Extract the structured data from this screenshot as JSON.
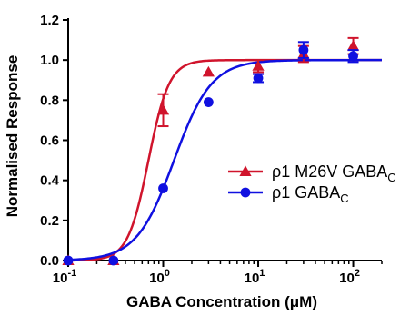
{
  "chart_data": {
    "type": "scatter",
    "title": "",
    "xlabel": "GABA Concentration (μM)",
    "ylabel": "Normalised Response",
    "xscale": "log",
    "xlim": [
      0.1,
      200
    ],
    "ylim": [
      0,
      1.2
    ],
    "xticks": [
      {
        "value": 0.1,
        "base": "10",
        "exp": "-1"
      },
      {
        "value": 1,
        "base": "10",
        "exp": "0"
      },
      {
        "value": 10,
        "base": "10",
        "exp": "1"
      },
      {
        "value": 100,
        "base": "10",
        "exp": "2"
      }
    ],
    "yticks": [
      "0.0",
      "0.2",
      "0.4",
      "0.6",
      "0.8",
      "1.0",
      "1.2"
    ],
    "grid": false,
    "legend_position": "center-right",
    "series": [
      {
        "name": "ρ1 M26V GABA",
        "name_subscript": "C",
        "color": "#d0142c",
        "marker": "triangle",
        "x": [
          0.1,
          0.3,
          1,
          3,
          10,
          30,
          100
        ],
        "y": [
          0.0,
          0.0,
          0.75,
          0.94,
          0.97,
          1.03,
          1.07
        ],
        "yerr": [
          0,
          0,
          0.08,
          0,
          0.03,
          0.04,
          0.04
        ],
        "fit": {
          "ec50": 0.7,
          "hill": 4.0,
          "top": 1.0,
          "bottom": 0.0
        }
      },
      {
        "name": "ρ1 GABA",
        "name_subscript": "C",
        "color": "#1010e0",
        "marker": "circle",
        "x": [
          0.1,
          0.3,
          1,
          3,
          10,
          30,
          100
        ],
        "y": [
          0.0,
          0.0,
          0.36,
          0.79,
          0.91,
          1.05,
          1.02
        ],
        "yerr": [
          0,
          0,
          0,
          0,
          0.02,
          0.04,
          0.03
        ],
        "fit": {
          "ec50": 1.3,
          "hill": 2.2,
          "top": 1.0,
          "bottom": 0.0
        }
      }
    ]
  }
}
